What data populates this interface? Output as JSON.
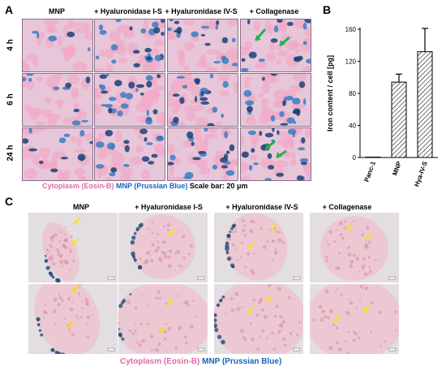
{
  "panel_a": {
    "label": "A",
    "columns": [
      "MNP",
      "+ Hyaluronidase  I-S",
      "+ Hyaluronidase  IV-S",
      "+ Collagenase"
    ],
    "rows": [
      "4 h",
      "6 h",
      "24 h"
    ],
    "caption": {
      "cytoplasm": "Cytoplasm (Eosin-B)",
      "mnp": "MNP (Prussian Blue)",
      "scale": "Scale bar: 20 μm"
    },
    "colors": {
      "tissue": "#e8c6da",
      "cell_pink": "#f1a9c6",
      "stain_blue": "#1b3f78",
      "stain_blue_light": "#3a7cc2",
      "arrow": "#22b14c"
    }
  },
  "panel_b": {
    "label": "B",
    "chart_data": {
      "type": "bar",
      "categories": [
        "Panc-1",
        "MNP",
        "Hya-IV-S"
      ],
      "values": [
        0.5,
        94,
        132
      ],
      "errors": [
        0,
        10,
        29
      ],
      "ylabel": "Iron  content / cell [pg]",
      "ylim": [
        0,
        160
      ],
      "yticks": [
        0,
        40,
        80,
        120,
        160
      ],
      "pattern": "diagonal-hatch",
      "grid": false
    }
  },
  "panel_c": {
    "label": "C",
    "columns": [
      "MNP",
      "+ Hyaluronidase  I-S",
      "+ Hyaluronidase  IV-S",
      "+ Collagenase"
    ],
    "caption": {
      "cytoplasm": "Cytoplasm (Eosin-B)",
      "mnp": "MNP (Prussian Blue)"
    },
    "colors": {
      "background": "#e3dee2",
      "spheroid": "#ecc9d2",
      "arrow": "#ffe000"
    }
  }
}
